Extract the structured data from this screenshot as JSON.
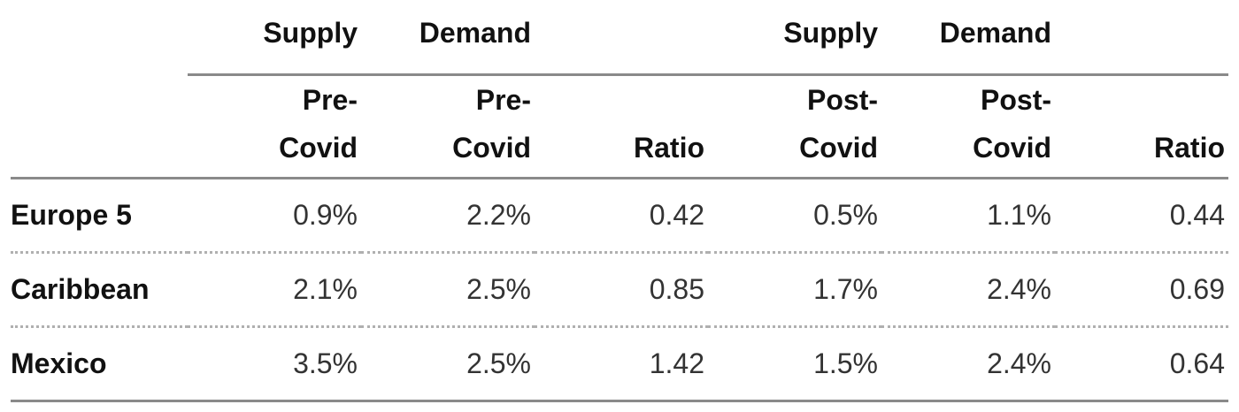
{
  "header_top": [
    "Supply",
    "Demand",
    "Supply",
    "Demand"
  ],
  "header": [
    "Pre-Covid",
    "Pre-Covid",
    "Ratio",
    "Post-Covid",
    "Post-Covid",
    "Ratio"
  ],
  "rows": [
    {
      "label": "Europe 5",
      "cells": [
        "0.9%",
        "2.2%",
        "0.42",
        "0.5%",
        "1.1%",
        "0.44"
      ]
    },
    {
      "label": "Caribbean",
      "cells": [
        "2.1%",
        "2.5%",
        "0.85",
        "1.7%",
        "2.4%",
        "0.69"
      ]
    },
    {
      "label": "Mexico",
      "cells": [
        "3.5%",
        "2.5%",
        "1.42",
        "1.5%",
        "2.4%",
        "0.64"
      ]
    }
  ]
}
